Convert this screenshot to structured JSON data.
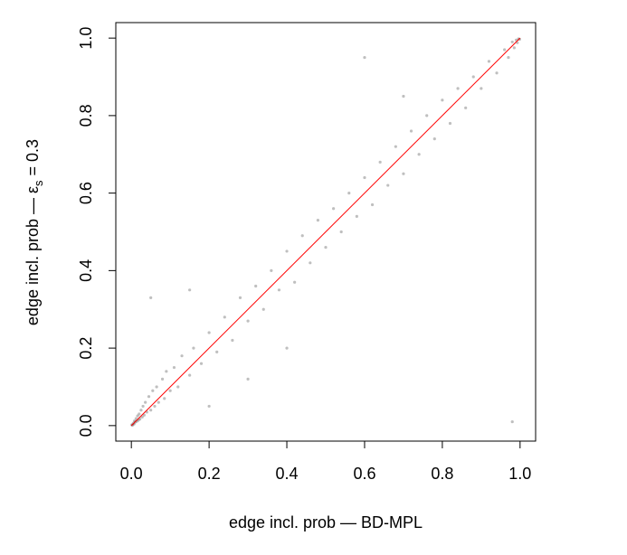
{
  "chart_data": {
    "type": "scatter",
    "xlabel": "edge incl. prob — BD-MPL",
    "ylabel": [
      "edge incl. prob — ε",
      "s",
      " = 0.3"
    ],
    "xlim": [
      -0.04,
      1.04
    ],
    "ylim": [
      -0.04,
      1.04
    ],
    "xticks": [
      {
        "value": 0,
        "label": "0.0"
      },
      0.2,
      0.4,
      0.6,
      0.8,
      {
        "value": 1,
        "label": "1.0"
      }
    ],
    "yticks": [
      {
        "value": 0,
        "label": "0.0"
      },
      0.2,
      0.4,
      0.6,
      0.8,
      {
        "value": 1,
        "label": "1.0"
      }
    ],
    "color": "#000000",
    "point_opacity": 0.25,
    "reference_line": {
      "x": [
        0,
        1
      ],
      "y": [
        0,
        1
      ],
      "color": "#ff0000"
    },
    "x": [
      0.001,
      0.003,
      0.005,
      0.007,
      0.008,
      0.01,
      0.012,
      0.014,
      0.016,
      0.018,
      0.02,
      0.022,
      0.025,
      0.028,
      0.03,
      0.033,
      0.036,
      0.04,
      0.045,
      0.05,
      0.055,
      0.06,
      0.065,
      0.07,
      0.08,
      0.085,
      0.09,
      0.1,
      0.11,
      0.12,
      0.13,
      0.15,
      0.16,
      0.18,
      0.2,
      0.22,
      0.24,
      0.26,
      0.28,
      0.3,
      0.32,
      0.34,
      0.36,
      0.38,
      0.4,
      0.42,
      0.44,
      0.46,
      0.48,
      0.5,
      0.52,
      0.54,
      0.56,
      0.58,
      0.6,
      0.62,
      0.64,
      0.66,
      0.68,
      0.7,
      0.72,
      0.74,
      0.76,
      0.78,
      0.8,
      0.82,
      0.84,
      0.86,
      0.88,
      0.9,
      0.92,
      0.94,
      0.96,
      0.97,
      0.98,
      0.985,
      0.99,
      0.993,
      0.996,
      0.999,
      0.05,
      0.6,
      0.98,
      0.2,
      0.4,
      0.7,
      0.3,
      0.15
    ],
    "values": [
      0.002,
      0.001,
      0.006,
      0.004,
      0.012,
      0.009,
      0.018,
      0.011,
      0.025,
      0.014,
      0.03,
      0.017,
      0.04,
      0.022,
      0.05,
      0.027,
      0.06,
      0.035,
      0.075,
      0.04,
      0.09,
      0.05,
      0.1,
      0.06,
      0.12,
      0.07,
      0.14,
      0.09,
      0.15,
      0.1,
      0.18,
      0.13,
      0.2,
      0.16,
      0.24,
      0.19,
      0.28,
      0.22,
      0.33,
      0.27,
      0.36,
      0.3,
      0.4,
      0.35,
      0.45,
      0.37,
      0.49,
      0.42,
      0.53,
      0.46,
      0.56,
      0.5,
      0.6,
      0.54,
      0.64,
      0.57,
      0.68,
      0.62,
      0.72,
      0.65,
      0.76,
      0.7,
      0.8,
      0.74,
      0.84,
      0.78,
      0.87,
      0.82,
      0.9,
      0.87,
      0.94,
      0.91,
      0.97,
      0.95,
      0.99,
      0.975,
      0.995,
      0.988,
      0.998,
      0.997,
      0.33,
      0.95,
      0.01,
      0.05,
      0.2,
      0.85,
      0.12,
      0.35
    ]
  }
}
